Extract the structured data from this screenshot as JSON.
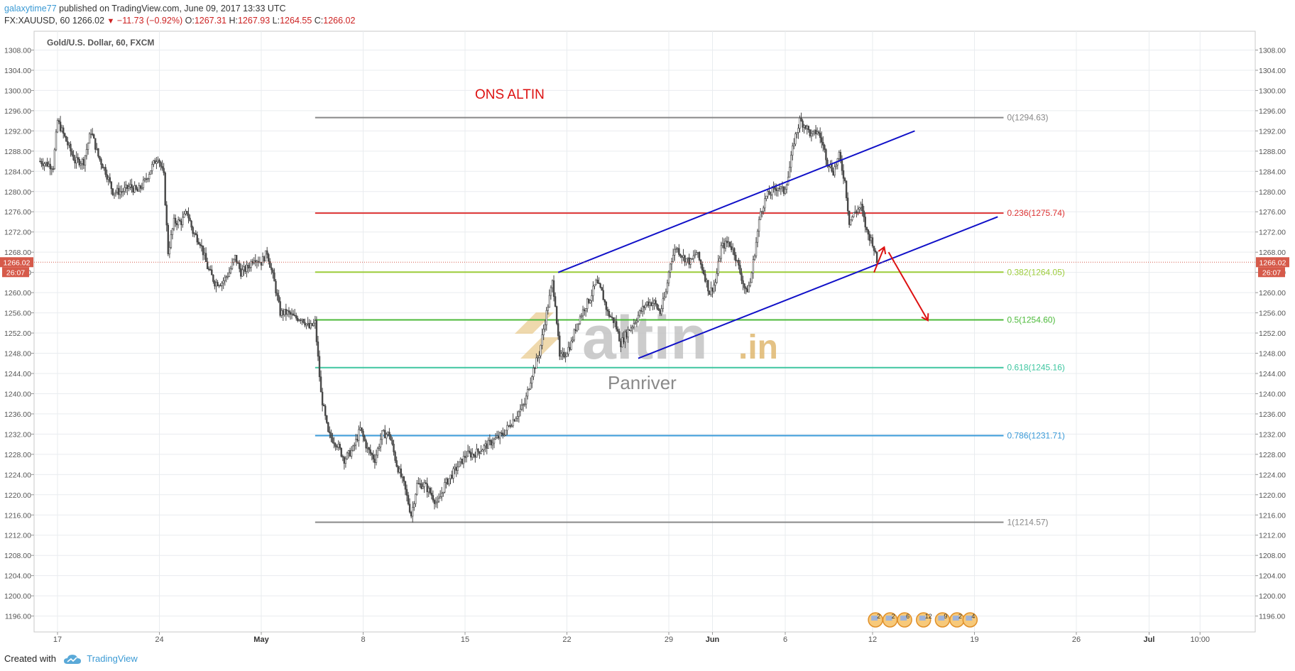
{
  "header": {
    "user": "galaxytime77",
    "published": "published on TradingView.com, June 09, 2017 13:33 UTC",
    "symbol": "FX:XAUUSD, 60",
    "last": "1266.02",
    "arrow": "▼",
    "change": "−11.73 (−0.92%)",
    "o_label": "O:",
    "o_val": "1267.31",
    "h_label": "H:",
    "h_val": "1267.93",
    "l_label": "L:",
    "l_val": "1264.55",
    "c_label": "C:",
    "c_val": "1266.02"
  },
  "footer": {
    "created_with": "Created with",
    "brand": "TradingView"
  },
  "colors": {
    "grid": "#e9ecef",
    "axis_text": "#555555",
    "candle_up": "#ffffff",
    "candle_down": "#4a4a4a",
    "channel": "#1010c8",
    "annotation": "#dd1111",
    "last_price_bg": "#d65a4a",
    "watermark": "#c8c8c8",
    "fib_0": "#888888",
    "fib_0236": "#dd3333",
    "fib_0382": "#9ccc3a",
    "fib_05": "#4cba3a",
    "fib_0618": "#3ec6a0",
    "fib_0786": "#3a9ad8",
    "fib_1": "#888888"
  },
  "chart_data": {
    "type": "candlestick",
    "title": "Gold/U.S. Dollar, 60, FXCM",
    "annotation": "ONS ALTIN",
    "watermark_main": "altin",
    "watermark_suffix": ".in",
    "watermark_sub": "Panriver",
    "ylim": [
      1192,
      1312
    ],
    "y_ticks": [
      "1308.00",
      "1304.00",
      "1300.00",
      "1296.00",
      "1292.00",
      "1288.00",
      "1284.00",
      "1280.00",
      "1276.00",
      "1272.00",
      "1268.00",
      "1264.00",
      "1260.00",
      "1256.00",
      "1252.00",
      "1248.00",
      "1244.00",
      "1240.00",
      "1236.00",
      "1232.00",
      "1228.00",
      "1224.00",
      "1220.00",
      "1216.00",
      "1212.00",
      "1208.00",
      "1204.00",
      "1200.00",
      "1196.00"
    ],
    "x_ticks": [
      {
        "label": "17",
        "day": 0
      },
      {
        "label": "24",
        "day": 7
      },
      {
        "label": "May",
        "day": 14
      },
      {
        "label": "8",
        "day": 21
      },
      {
        "label": "15",
        "day": 28
      },
      {
        "label": "22",
        "day": 35
      },
      {
        "label": "29",
        "day": 42
      },
      {
        "label": "Jun",
        "day": 45
      },
      {
        "label": "6",
        "day": 50
      },
      {
        "label": "12",
        "day": 56
      },
      {
        "label": "19",
        "day": 63
      },
      {
        "label": "26",
        "day": 70
      },
      {
        "label": "Jul",
        "day": 75
      },
      {
        "label": "10:00",
        "day": 78.5
      }
    ],
    "x_unit": "days since Apr 17, 2017",
    "last_price": "1266.02",
    "countdown": "26:07",
    "price_path": [
      [
        -1.2,
        1286
      ],
      [
        -0.3,
        1285
      ],
      [
        0,
        1294
      ],
      [
        0.6,
        1290
      ],
      [
        1.2,
        1286
      ],
      [
        1.8,
        1286
      ],
      [
        2.3,
        1292
      ],
      [
        2.8,
        1287
      ],
      [
        3.3,
        1284
      ],
      [
        3.8,
        1280
      ],
      [
        4.4,
        1280
      ],
      [
        5.0,
        1281
      ],
      [
        5.5,
        1280
      ],
      [
        6.0,
        1282
      ],
      [
        6.5,
        1285
      ],
      [
        6.9,
        1287
      ],
      [
        7.3,
        1283
      ],
      [
        7.6,
        1268
      ],
      [
        8.0,
        1274
      ],
      [
        8.5,
        1274
      ],
      [
        8.9,
        1276
      ],
      [
        9.3,
        1272
      ],
      [
        9.8,
        1270
      ],
      [
        10.3,
        1265
      ],
      [
        10.8,
        1262
      ],
      [
        11.3,
        1262
      ],
      [
        11.8,
        1264
      ],
      [
        12.2,
        1267
      ],
      [
        12.6,
        1264
      ],
      [
        13.1,
        1265
      ],
      [
        13.5,
        1267
      ],
      [
        14.0,
        1266
      ],
      [
        14.4,
        1268
      ],
      [
        14.9,
        1262
      ],
      [
        15.3,
        1256
      ],
      [
        15.8,
        1256
      ],
      [
        16.3,
        1255
      ],
      [
        16.8,
        1255
      ],
      [
        17.3,
        1253
      ],
      [
        17.7,
        1254
      ],
      [
        18.1,
        1240
      ],
      [
        18.6,
        1232
      ],
      [
        19.2,
        1230
      ],
      [
        19.7,
        1227
      ],
      [
        20.3,
        1229
      ],
      [
        20.8,
        1233
      ],
      [
        21.3,
        1229
      ],
      [
        21.8,
        1227
      ],
      [
        22.3,
        1232
      ],
      [
        22.8,
        1232
      ],
      [
        23.3,
        1226
      ],
      [
        23.8,
        1222
      ],
      [
        24.3,
        1216
      ],
      [
        24.7,
        1222
      ],
      [
        25.2,
        1222
      ],
      [
        25.7,
        1220
      ],
      [
        26.1,
        1218
      ],
      [
        26.6,
        1222
      ],
      [
        27.1,
        1224
      ],
      [
        27.6,
        1226
      ],
      [
        28.1,
        1228
      ],
      [
        28.6,
        1228
      ],
      [
        29.1,
        1229
      ],
      [
        29.6,
        1230
      ],
      [
        30.1,
        1231
      ],
      [
        30.6,
        1232
      ],
      [
        31.1,
        1234
      ],
      [
        31.6,
        1236
      ],
      [
        32.1,
        1238
      ],
      [
        32.6,
        1244
      ],
      [
        33.1,
        1248
      ],
      [
        33.6,
        1256
      ],
      [
        34.0,
        1262
      ],
      [
        34.2,
        1258
      ],
      [
        34.5,
        1247
      ],
      [
        34.9,
        1248
      ],
      [
        35.3,
        1250
      ],
      [
        35.7,
        1254
      ],
      [
        36.2,
        1257
      ],
      [
        36.6,
        1259
      ],
      [
        37.0,
        1262
      ],
      [
        37.4,
        1260
      ],
      [
        37.8,
        1256
      ],
      [
        38.3,
        1254
      ],
      [
        38.7,
        1250
      ],
      [
        39.1,
        1252
      ],
      [
        39.6,
        1254
      ],
      [
        40.0,
        1256
      ],
      [
        40.5,
        1258
      ],
      [
        41.0,
        1258
      ],
      [
        41.4,
        1256
      ],
      [
        41.8,
        1260
      ],
      [
        42.1,
        1266
      ],
      [
        42.5,
        1269
      ],
      [
        43.0,
        1267
      ],
      [
        43.5,
        1266
      ],
      [
        43.9,
        1268
      ],
      [
        44.4,
        1264
      ],
      [
        44.8,
        1260
      ],
      [
        45.2,
        1262
      ],
      [
        45.6,
        1269
      ],
      [
        46.1,
        1270
      ],
      [
        46.5,
        1268
      ],
      [
        46.9,
        1264
      ],
      [
        47.3,
        1260
      ],
      [
        47.6,
        1262
      ],
      [
        47.9,
        1268
      ],
      [
        48.3,
        1276
      ],
      [
        48.7,
        1279
      ],
      [
        49.1,
        1280
      ],
      [
        49.5,
        1281
      ],
      [
        49.9,
        1280
      ],
      [
        50.2,
        1283
      ],
      [
        50.6,
        1290
      ],
      [
        51.0,
        1294
      ],
      [
        51.4,
        1293
      ],
      [
        51.8,
        1291
      ],
      [
        52.2,
        1292
      ],
      [
        52.5,
        1290
      ],
      [
        52.9,
        1286
      ],
      [
        53.3,
        1284
      ],
      [
        53.7,
        1287
      ],
      [
        54.1,
        1282
      ],
      [
        54.4,
        1274
      ],
      [
        54.8,
        1276
      ],
      [
        55.2,
        1277
      ],
      [
        55.6,
        1272
      ],
      [
        56.0,
        1270
      ],
      [
        56.3,
        1266
      ]
    ],
    "fibonacci": [
      {
        "level": "0",
        "price": 1294.63,
        "label": "0(1294.63)"
      },
      {
        "level": "0.236",
        "price": 1275.74,
        "label": "0.236(1275.74)"
      },
      {
        "level": "0.382",
        "price": 1264.05,
        "label": "0.382(1264.05)"
      },
      {
        "level": "0.5",
        "price": 1254.6,
        "label": "0.5(1254.60)"
      },
      {
        "level": "0.618",
        "price": 1245.16,
        "label": "0.618(1245.16)"
      },
      {
        "level": "0.786",
        "price": 1231.71,
        "label": "0.786(1231.71)"
      },
      {
        "level": "1",
        "price": 1214.57,
        "label": "1(1214.57)"
      }
    ],
    "fib_x_start_day": 17.7,
    "fib_x_end_day": 65,
    "channel_upper": [
      [
        34.4,
        1264
      ],
      [
        58.9,
        1292
      ]
    ],
    "channel_lower": [
      [
        39.9,
        1247
      ],
      [
        64.6,
        1275
      ]
    ],
    "arrow_up": [
      [
        56.1,
        1264
      ],
      [
        56.8,
        1269
      ]
    ],
    "arrow_down": [
      [
        57.1,
        1268
      ],
      [
        59.8,
        1254.5
      ]
    ],
    "events": [
      {
        "day": 56.2,
        "count": "2"
      },
      {
        "day": 57.2,
        "count": "2"
      },
      {
        "day": 58.2,
        "count": "6"
      },
      {
        "day": 59.5,
        "count": "12"
      },
      {
        "day": 60.8,
        "count": "9"
      },
      {
        "day": 61.8,
        "count": "2"
      },
      {
        "day": 62.7,
        "count": "4"
      }
    ]
  }
}
